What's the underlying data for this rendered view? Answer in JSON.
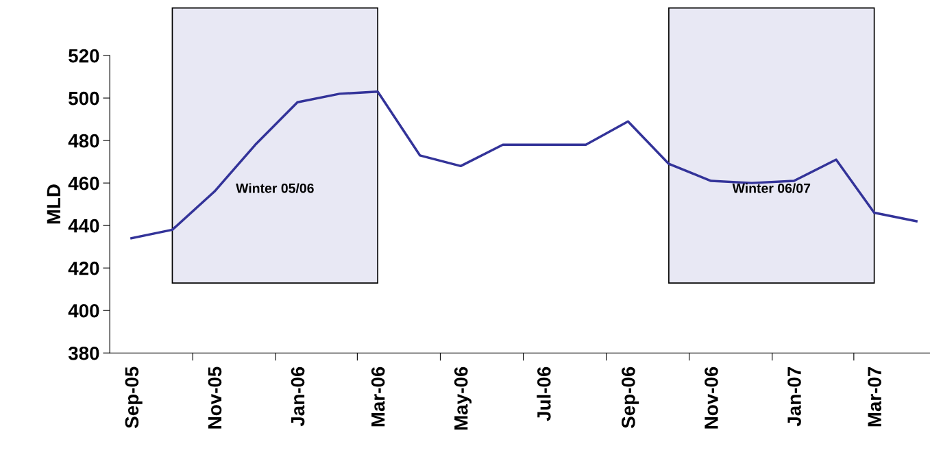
{
  "chart_data": {
    "type": "line",
    "ylabel": "MLD",
    "x": [
      "2005-09",
      "2005-10",
      "2005-11",
      "2005-12",
      "2006-01",
      "2006-02",
      "2006-03",
      "2006-04",
      "2006-05",
      "2006-06",
      "2006-07",
      "2006-08",
      "2006-09",
      "2006-10",
      "2006-11",
      "2006-12",
      "2007-01",
      "2007-02",
      "2007-03",
      "2007-04"
    ],
    "series": [
      {
        "color": "#333399",
        "values": [
          434,
          438,
          456,
          478,
          498,
          502,
          503,
          473,
          468,
          478,
          478,
          478,
          489,
          469,
          461,
          460,
          461,
          471,
          446,
          442
        ]
      }
    ],
    "xlim": [
      "2005-08-16",
      "2007-04-11"
    ],
    "xticks": [
      {
        "value": "2005-09",
        "label": "Sep-05"
      },
      {
        "value": "2005-11",
        "label": "Nov-05"
      },
      {
        "value": "2006-01",
        "label": "Jan-06"
      },
      {
        "value": "2006-03",
        "label": "Mar-06"
      },
      {
        "value": "2006-05",
        "label": "May-06"
      },
      {
        "value": "2006-07",
        "label": "Jul-06"
      },
      {
        "value": "2006-09",
        "label": "Sep-06"
      },
      {
        "value": "2006-11",
        "label": "Nov-06"
      },
      {
        "value": "2007-01",
        "label": "Jan-07"
      },
      {
        "value": "2007-03",
        "label": "Mar-07"
      },
      {
        "value": "2005-10-16",
        "label": null
      },
      {
        "value": "2005-12-16",
        "label": null
      },
      {
        "value": "2006-02-14",
        "label": null
      },
      {
        "value": "2006-04-16",
        "label": null
      },
      {
        "value": "2006-06-16",
        "label": null
      },
      {
        "value": "2006-08-16",
        "label": null
      },
      {
        "value": "2006-10-16",
        "label": null
      },
      {
        "value": "2006-12-16",
        "label": null
      },
      {
        "value": "2007-02-14",
        "label": null
      }
    ],
    "ylim": [
      380,
      520
    ],
    "yticks": [
      380,
      400,
      420,
      440,
      460,
      480,
      500,
      520
    ],
    "bands": [
      {
        "axis": "x",
        "from": "2005-10",
        "to": "2006-03",
        "label": "Winter 05/06",
        "color": "#e8e8f4"
      },
      {
        "axis": "x",
        "from": "2006-10",
        "to": "2007-03",
        "label": "Winter 06/07",
        "color": "#e8e8f4"
      }
    ],
    "grid": false,
    "legend": false,
    "marker": "none",
    "line_style": "solid"
  }
}
